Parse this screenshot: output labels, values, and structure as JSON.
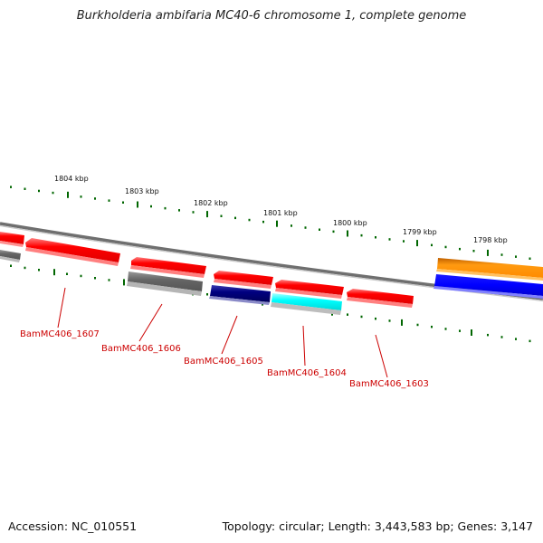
{
  "title": "Burkholderia ambifaria MC40-6 chromosome 1, complete genome",
  "footer": {
    "accession": "Accession: NC_010551",
    "summary": "Topology: circular; Length: 3,443,583 bp; Genes: 3,147"
  },
  "scale_labels": [
    "1804 kbp",
    "1803 kbp",
    "1802 kbp",
    "1801 kbp",
    "1800 kbp",
    "1799 kbp",
    "1798 kbp"
  ],
  "gene_labels": [
    "BamMC406_1607",
    "BamMC406_1606",
    "BamMC406_1605",
    "BamMC406_1604",
    "BamMC406_1603"
  ],
  "colors": {
    "cds": "#ff0000",
    "grey_feature": "#666666",
    "navy_feature": "#000080",
    "cyan_feature": "#00ffff",
    "orange_feature": "#ff8c00",
    "blue_feature": "#0000ff",
    "backbone": "#888888",
    "ticks": "#006600",
    "label": "#cc0000"
  }
}
